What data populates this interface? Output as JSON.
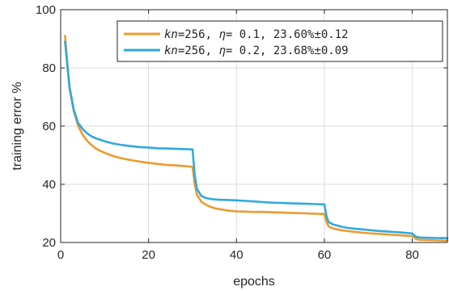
{
  "chart_data": {
    "type": "line",
    "title": "",
    "xlabel": "epochs",
    "ylabel": "training error %",
    "xlim": [
      0,
      88
    ],
    "ylim": [
      20,
      100
    ],
    "xticks": [
      0,
      20,
      40,
      60,
      80
    ],
    "yticks": [
      20,
      40,
      60,
      80,
      100
    ],
    "x_tick_labels": [
      "0",
      "20",
      "40",
      "60",
      "80"
    ],
    "y_tick_labels": [
      "20",
      "40",
      "60",
      "80",
      "100"
    ],
    "grid": true,
    "legend_position": "top-right",
    "series": [
      {
        "name": "kn=256, η= 0.1, 23.60%±0.12",
        "name_parts": {
          "var": "kn",
          "p1": "=256, ",
          "eta": "η",
          "p2": "= 0.1, 23.60%±0.12"
        },
        "color": "#EE9A2E",
        "x": [
          1,
          2,
          3,
          4,
          5,
          6,
          7,
          8,
          9,
          10,
          12,
          14,
          16,
          18,
          20,
          22,
          24,
          26,
          28,
          30,
          30.5,
          31,
          32,
          33,
          34,
          35,
          36,
          38,
          40,
          42,
          44,
          46,
          48,
          50,
          52,
          54,
          56,
          58,
          60,
          60.5,
          61,
          62,
          63,
          64,
          65,
          66,
          68,
          70,
          72,
          74,
          76,
          78,
          80,
          80.5,
          81,
          82,
          84,
          86,
          88
        ],
        "y": [
          91.0,
          73.0,
          65.0,
          60.0,
          57.0,
          55.0,
          53.5,
          52.3,
          51.5,
          50.8,
          49.7,
          48.9,
          48.3,
          47.8,
          47.4,
          47.0,
          46.7,
          46.5,
          46.3,
          46.0,
          40.0,
          36.5,
          34.0,
          33.0,
          32.3,
          31.8,
          31.5,
          31.0,
          30.7,
          30.6,
          30.5,
          30.5,
          30.4,
          30.3,
          30.2,
          30.1,
          30.0,
          29.9,
          29.8,
          27.0,
          25.5,
          24.8,
          24.5,
          24.2,
          24.0,
          23.8,
          23.5,
          23.2,
          23.0,
          22.8,
          22.6,
          22.4,
          22.2,
          21.6,
          21.1,
          20.9,
          20.8,
          20.7,
          20.6
        ]
      },
      {
        "name": "kn=256, η= 0.2, 23.68%±0.09",
        "name_parts": {
          "var": "kn",
          "p1": "=256, ",
          "eta": "η",
          "p2": "= 0.2, 23.68%±0.09"
        },
        "color": "#2EAADC",
        "x": [
          1,
          2,
          3,
          4,
          5,
          6,
          7,
          8,
          9,
          10,
          12,
          14,
          16,
          18,
          20,
          22,
          24,
          26,
          28,
          30,
          30.5,
          31,
          32,
          33,
          34,
          35,
          36,
          38,
          40,
          42,
          44,
          46,
          48,
          50,
          52,
          54,
          56,
          58,
          60,
          60.5,
          61,
          62,
          63,
          64,
          65,
          66,
          68,
          70,
          72,
          74,
          76,
          78,
          80,
          80.5,
          81,
          82,
          84,
          86,
          88
        ],
        "y": [
          89.0,
          73.5,
          65.5,
          61.0,
          59.0,
          57.5,
          56.5,
          55.8,
          55.3,
          54.8,
          54.0,
          53.5,
          53.1,
          52.8,
          52.6,
          52.4,
          52.3,
          52.2,
          52.1,
          52.0,
          43.0,
          38.5,
          36.0,
          35.3,
          35.0,
          34.8,
          34.7,
          34.6,
          34.5,
          34.3,
          34.1,
          33.9,
          33.7,
          33.6,
          33.5,
          33.4,
          33.3,
          33.2,
          33.1,
          29.0,
          27.0,
          26.2,
          25.8,
          25.4,
          25.1,
          24.9,
          24.6,
          24.3,
          24.0,
          23.8,
          23.6,
          23.4,
          23.1,
          22.4,
          21.9,
          21.7,
          21.6,
          21.5,
          21.5
        ]
      }
    ]
  }
}
